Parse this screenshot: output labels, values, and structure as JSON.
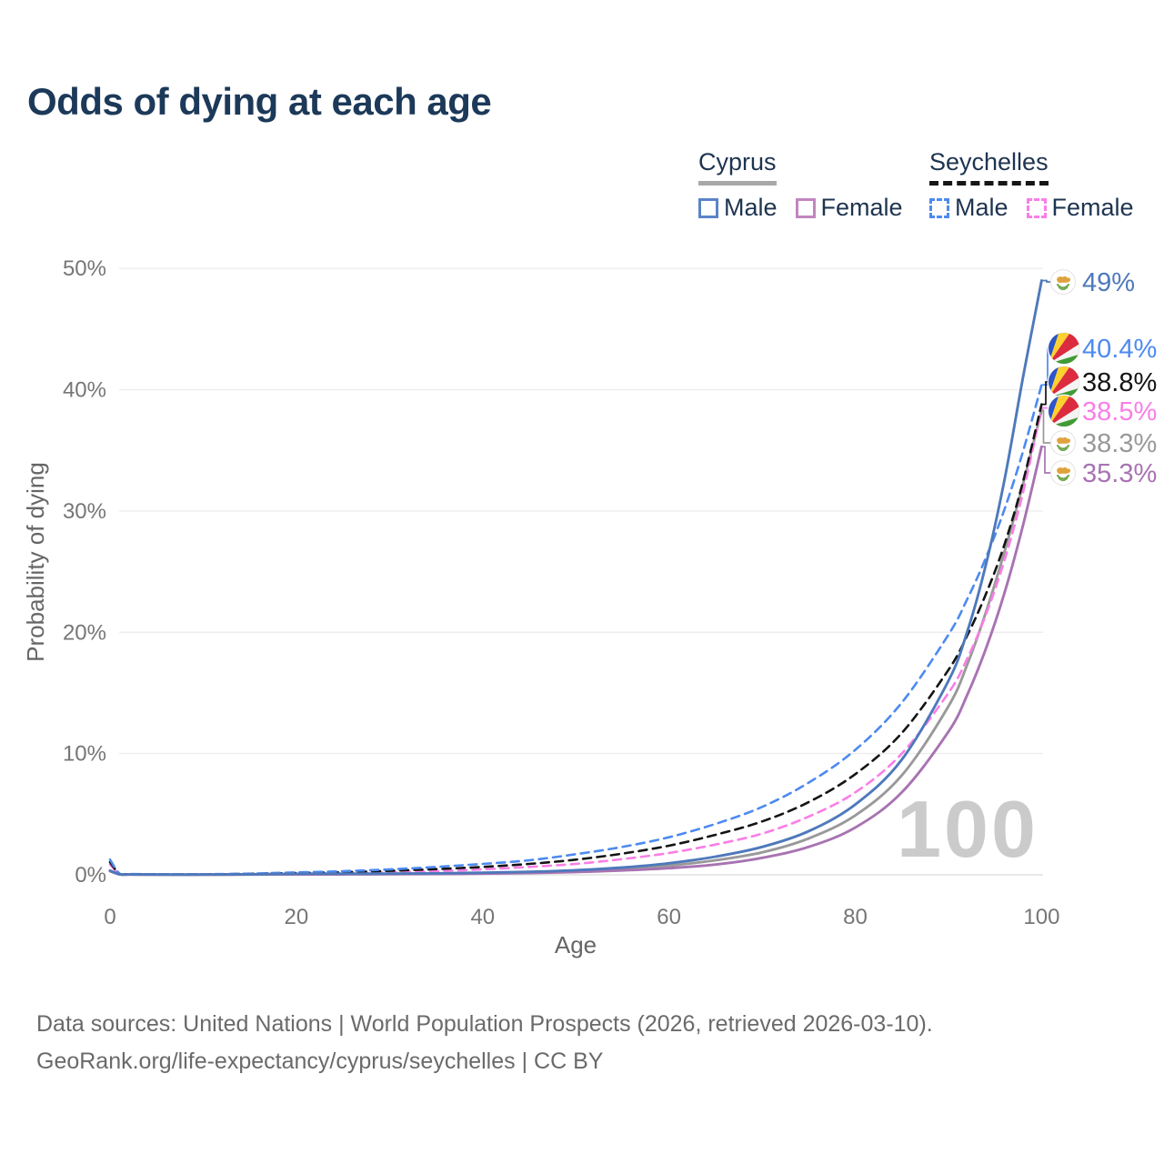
{
  "title": "Odds of dying at each age",
  "watermark": "100",
  "legend": {
    "cyprus": {
      "name": "Cyprus",
      "male": "Male",
      "female": "Female"
    },
    "seychelles": {
      "name": "Seychelles",
      "male": "Male",
      "female": "Female"
    }
  },
  "footer": {
    "line1": "Data sources: United Nations | World Population Prospects (2026, retrieved 2026-03-10).",
    "line2": "GeoRank.org/life-expectancy/cyprus/seychelles | CC BY"
  },
  "colors": {
    "title_text": "#1c3959",
    "legend_text": "#1e3450",
    "cyprus_underline": "#a8a8a8",
    "seychelles_underline": "#161616",
    "cyprus_male": "#4e79bb",
    "cyprus_female": "#a873b2",
    "cyprus_both": "#999999",
    "seychelles_male": "#4d8af0",
    "seychelles_both": "#141414",
    "seychelles_female": "#f97ee6",
    "grid": "#ededed",
    "tick_text": "#767676",
    "watermark_text": "#cbcbcb",
    "footer_text": "#6a6a6a"
  },
  "chart_data": {
    "type": "line",
    "title": "Odds of dying at each age",
    "xlabel": "Age",
    "ylabel": "Probability of dying",
    "xlim": [
      0,
      100
    ],
    "ylim_percent": [
      0,
      50
    ],
    "xticks": [
      0,
      20,
      40,
      60,
      80,
      100
    ],
    "yticks": [
      0,
      10,
      20,
      30,
      40,
      50
    ],
    "ytick_labels": [
      "0%",
      "10%",
      "20%",
      "30%",
      "40%",
      "50%"
    ],
    "grid": true,
    "legend_position": "top-right",
    "ages": [
      0,
      1,
      2,
      5,
      10,
      15,
      20,
      25,
      30,
      35,
      40,
      45,
      50,
      55,
      60,
      65,
      70,
      75,
      80,
      85,
      90,
      92,
      94,
      96,
      98,
      100
    ],
    "series": [
      {
        "id": "cyprus-both",
        "name": "Cyprus Both sexes",
        "country": "Cyprus",
        "sex": "Both sexes",
        "color": "#999999",
        "dash": false,
        "end_label": "38.3%",
        "values": [
          0.32,
          0.045,
          0.025,
          0.018,
          0.018,
          0.03,
          0.055,
          0.065,
          0.075,
          0.095,
          0.135,
          0.2,
          0.3,
          0.48,
          0.75,
          1.2,
          1.85,
          3.0,
          4.9,
          8.2,
          13.9,
          17.3,
          21.6,
          26.6,
          32.2,
          38.3
        ]
      },
      {
        "id": "cyprus-female",
        "name": "Cyprus Female",
        "country": "Cyprus",
        "sex": "Female",
        "color": "#a873b2",
        "dash": false,
        "end_label": "35.3%",
        "values": [
          0.3,
          0.04,
          0.02,
          0.015,
          0.015,
          0.02,
          0.03,
          0.04,
          0.05,
          0.07,
          0.1,
          0.15,
          0.23,
          0.36,
          0.55,
          0.85,
          1.4,
          2.3,
          3.9,
          6.8,
          11.8,
          14.8,
          18.6,
          23.2,
          28.8,
          35.3
        ]
      },
      {
        "id": "seychelles-female",
        "name": "Seychelles Female",
        "country": "Seychelles",
        "sex": "Female",
        "color": "#f97ee6",
        "dash": true,
        "end_label": "38.5%",
        "values": [
          0.85,
          0.08,
          0.05,
          0.03,
          0.03,
          0.06,
          0.1,
          0.14,
          0.2,
          0.3,
          0.45,
          0.65,
          0.9,
          1.3,
          1.8,
          2.5,
          3.4,
          4.8,
          6.8,
          10.0,
          15.0,
          17.8,
          21.4,
          25.9,
          31.5,
          38.5
        ]
      },
      {
        "id": "seychelles-both",
        "name": "Seychelles Both sexes",
        "country": "Seychelles",
        "sex": "Both sexes",
        "color": "#141414",
        "dash": true,
        "end_label": "38.8%",
        "values": [
          1.05,
          0.1,
          0.06,
          0.04,
          0.04,
          0.08,
          0.15,
          0.22,
          0.33,
          0.47,
          0.65,
          0.9,
          1.25,
          1.75,
          2.4,
          3.3,
          4.4,
          6.0,
          8.3,
          11.7,
          16.9,
          19.7,
          23.1,
          27.2,
          32.4,
          38.8
        ]
      },
      {
        "id": "seychelles-male",
        "name": "Seychelles Male",
        "country": "Seychelles",
        "sex": "Male",
        "color": "#4d8af0",
        "dash": true,
        "end_label": "40.4%",
        "values": [
          1.25,
          0.12,
          0.07,
          0.05,
          0.05,
          0.1,
          0.2,
          0.3,
          0.45,
          0.65,
          0.9,
          1.2,
          1.7,
          2.3,
          3.1,
          4.2,
          5.6,
          7.6,
          10.3,
          14.2,
          19.8,
          22.7,
          26.1,
          30.1,
          34.9,
          40.4
        ]
      },
      {
        "id": "cyprus-male",
        "name": "Cyprus Male",
        "country": "Cyprus",
        "sex": "Male",
        "color": "#4e79bb",
        "dash": false,
        "end_label": "49%",
        "values": [
          0.35,
          0.05,
          0.03,
          0.02,
          0.02,
          0.04,
          0.08,
          0.09,
          0.1,
          0.12,
          0.17,
          0.25,
          0.38,
          0.6,
          0.95,
          1.5,
          2.3,
          3.6,
          5.8,
          9.5,
          16.0,
          20.0,
          25.5,
          32.5,
          41.0,
          49.0
        ]
      }
    ]
  }
}
